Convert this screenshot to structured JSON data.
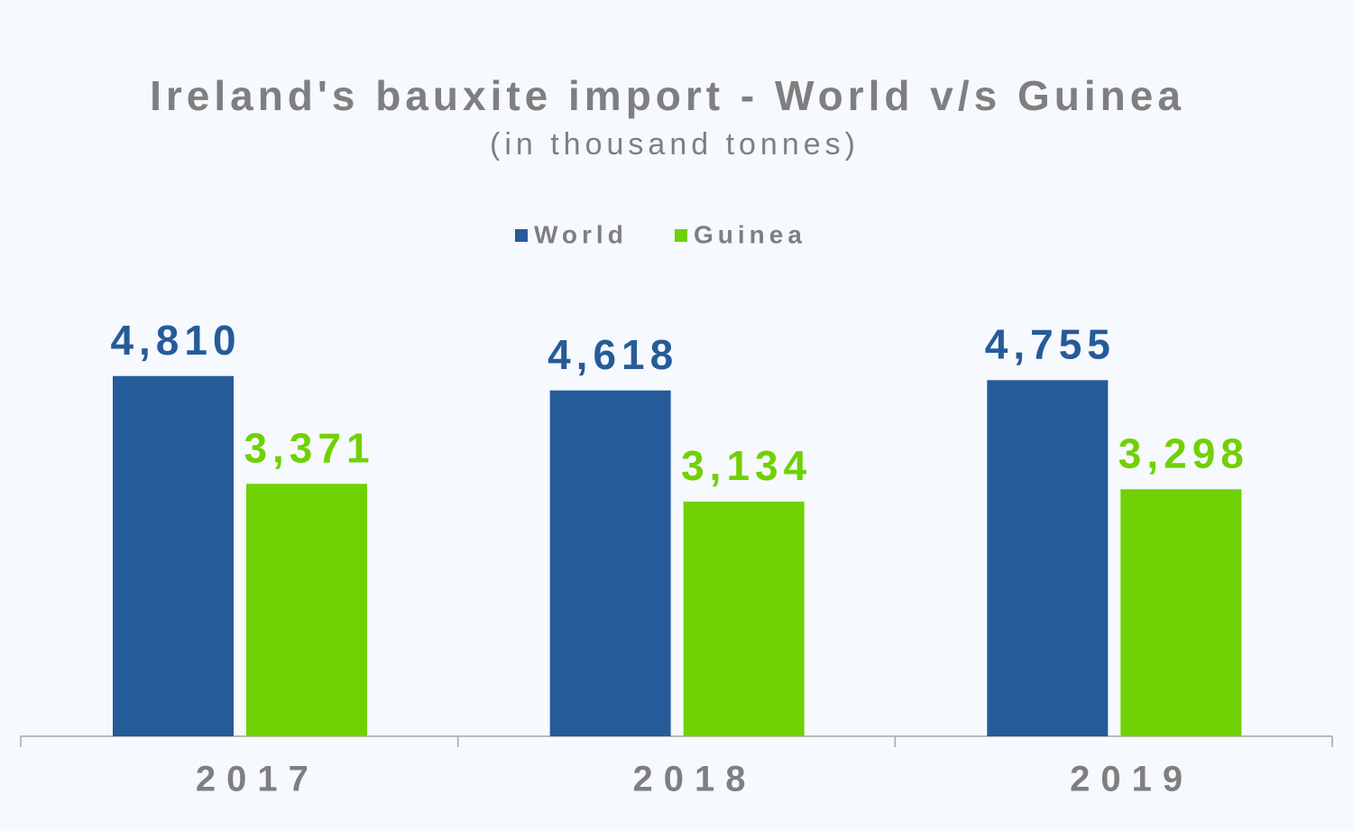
{
  "chart_data": {
    "type": "bar",
    "title": "Ireland's bauxite import - World v/s Guinea",
    "subtitle": "(in thousand tonnes)",
    "categories": [
      "2017",
      "2018",
      "2019"
    ],
    "series": [
      {
        "name": "World",
        "color": "#265b99",
        "values": [
          4810,
          4618,
          4755
        ],
        "value_labels": [
          "4,810",
          "4,618",
          "4,755"
        ]
      },
      {
        "name": "Guinea",
        "color": "#70d103",
        "values": [
          3371,
          3134,
          3298
        ],
        "value_labels": [
          "3,371",
          "3,134",
          "3,298"
        ]
      }
    ],
    "legend": "top"
  }
}
